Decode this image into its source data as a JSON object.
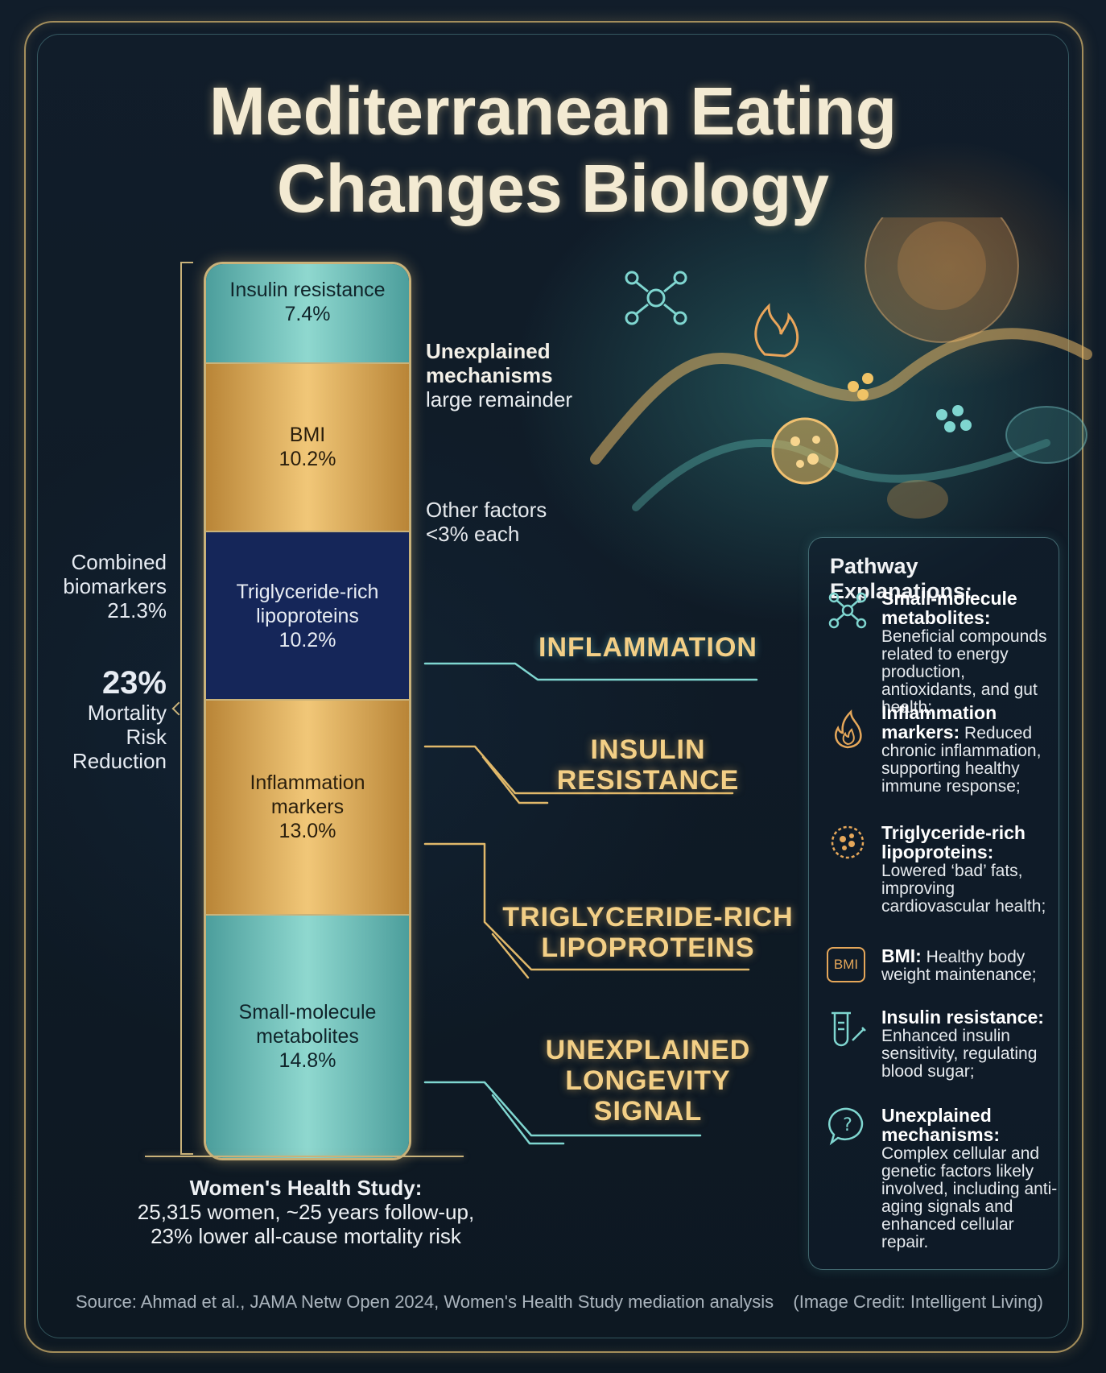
{
  "title": [
    "Mediterranean Eating",
    "Changes Biology"
  ],
  "chart_data": {
    "type": "stacked bar",
    "unit": "%",
    "segments": [
      {
        "label": "Small-molecule metabolites",
        "value": 14.8,
        "color": "#7ecfc6"
      },
      {
        "label": "Inflammation markers",
        "value": 13.0,
        "color": "#e9b865"
      },
      {
        "label": "Triglyceride-rich lipoproteins",
        "value": 10.2,
        "color": "#152659"
      },
      {
        "label": "BMI",
        "value": 10.2,
        "color": "#e9b865"
      },
      {
        "label": "Insulin resistance",
        "value": 7.4,
        "color": "#7ecfc6"
      }
    ],
    "segment_texts": [
      {
        "lines": [
          "Small-molecule",
          "metabolites"
        ],
        "value": "14.8%"
      },
      {
        "lines": [
          "Inflammation",
          "markers"
        ],
        "value": "13.0%"
      },
      {
        "lines": [
          "Triglyceride-rich",
          "lipoproteins"
        ],
        "value": "10.2%"
      },
      {
        "lines": [
          "BMI"
        ],
        "value": "10.2%"
      },
      {
        "lines": [
          "Insulin resistance"
        ],
        "value": "7.4%"
      }
    ],
    "other_factors": {
      "lines": [
        "Other factors",
        "<3% each"
      ],
      "band_count": 6
    },
    "unexplained": {
      "lines": [
        "Unexplained",
        "mechanisms"
      ],
      "detail": "large remainder"
    },
    "combined": {
      "lines": [
        "Combined",
        "biomarkers",
        "21.3%"
      ]
    },
    "total": {
      "big": "23%",
      "lines": [
        "Mortality",
        "Risk",
        "Reduction"
      ]
    }
  },
  "callouts": [
    {
      "lines": [
        "INFLAMMATION"
      ]
    },
    {
      "lines": [
        "INSULIN",
        "RESISTANCE"
      ]
    },
    {
      "lines": [
        "TRIGLYCERIDE-RICH",
        "LIPOPROTEINS"
      ]
    },
    {
      "lines": [
        "UNEXPLAINED",
        "LONGEVITY",
        "SIGNAL"
      ]
    }
  ],
  "study": {
    "heading": "Women's Health Study:",
    "lines": [
      "25,315 women, ~25 years follow-up,",
      "23% lower all-cause mortality risk"
    ]
  },
  "panel": {
    "title": "Pathway Explanations:",
    "items": [
      {
        "icon": "molecule-icon",
        "head": "Small-molecule metabolites:",
        "text": "Beneficial compounds related to energy production, antioxidants, and gut health;"
      },
      {
        "icon": "flame-icon",
        "head": "Inflammation markers:",
        "text": "Reduced chronic inflammation, supporting healthy immune response;"
      },
      {
        "icon": "lipoprotein-icon",
        "head": "Triglyceride-rich lipoproteins:",
        "text": "Lowered ‘bad’ fats, improving cardiovascular health;"
      },
      {
        "icon": "bmi-icon",
        "icon_text": "BMI",
        "head": "BMI:",
        "text": "Healthy body weight maintenance;"
      },
      {
        "icon": "test-tube-icon",
        "head": "Insulin resistance:",
        "text": "Enhanced insulin sensitivity, regulating blood sugar;"
      },
      {
        "icon": "question-bubble-icon",
        "head": "Unexplained mechanisms:",
        "text": "Complex cellular and genetic factors likely involved, including anti-aging signals and enhanced cellular repair."
      }
    ]
  },
  "source": "Source: Ahmad et al., JAMA Netw Open 2024, Women's Health Study mediation analysis",
  "credit": "(Image Credit: Intelligent Living)"
}
